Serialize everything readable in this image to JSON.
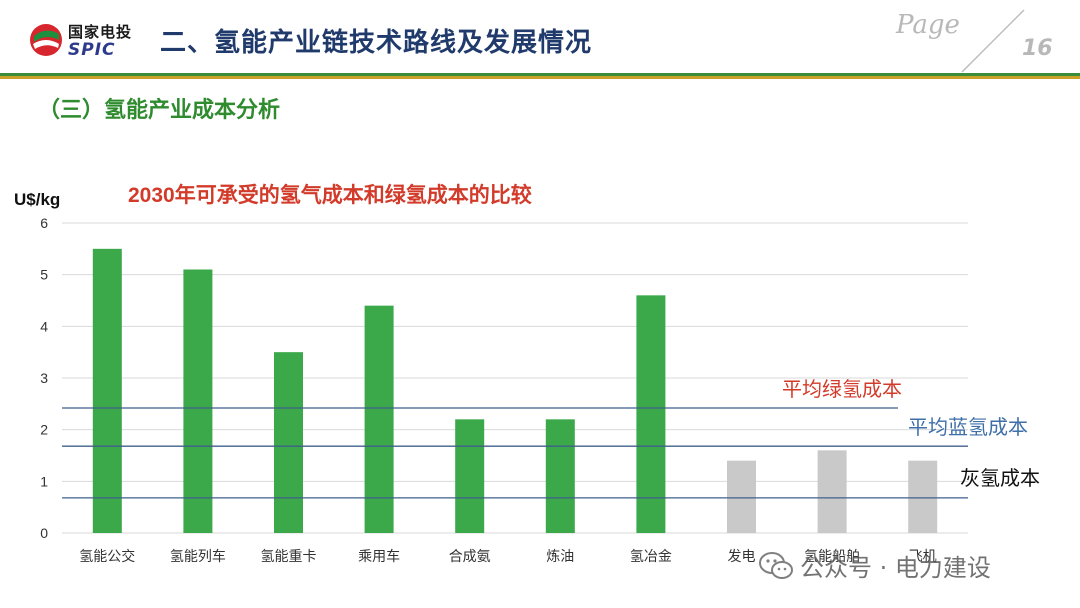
{
  "header": {
    "logo_cn": "国家电投",
    "logo_en": "SPIC",
    "title": "二、氢能产业链技术路线及发展情况",
    "page_label": "Page",
    "page_number": "16"
  },
  "section": {
    "title": "（三）氢能产业成本分析"
  },
  "watermark": {
    "text": "公众号 · 电力建设"
  },
  "chart_data": {
    "type": "bar",
    "title": "2030年可承受的氢气成本和绿氢成本的比较",
    "ylabel": "U$/kg",
    "xlabel": "",
    "ylim": [
      0,
      6
    ],
    "yticks": [
      0,
      1,
      2,
      3,
      4,
      5,
      6
    ],
    "grid": true,
    "categories": [
      "氢能公交",
      "氢能列车",
      "氢能重卡",
      "乘用车",
      "合成氨",
      "炼油",
      "氢冶金",
      "发电",
      "氢能船舶",
      "飞机"
    ],
    "values": [
      5.5,
      5.1,
      3.5,
      4.4,
      2.2,
      2.2,
      4.6,
      1.4,
      1.6,
      1.4
    ],
    "bar_colors": [
      "#3ba84a",
      "#3ba84a",
      "#3ba84a",
      "#3ba84a",
      "#3ba84a",
      "#3ba84a",
      "#3ba84a",
      "#c9c9c9",
      "#c9c9c9",
      "#c9c9c9"
    ],
    "reference_lines": [
      {
        "label": "平均绿氢成本",
        "value": 2.42,
        "color": "#d23a2a",
        "line_color": "#3f5f8a"
      },
      {
        "label": "平均蓝氢成本",
        "value": 1.68,
        "color": "#3f6fa8",
        "line_color": "#3f5f8a"
      },
      {
        "label": "灰氢成本",
        "value": 0.68,
        "color": "#111111",
        "line_color": "#3f5f8a"
      }
    ]
  }
}
